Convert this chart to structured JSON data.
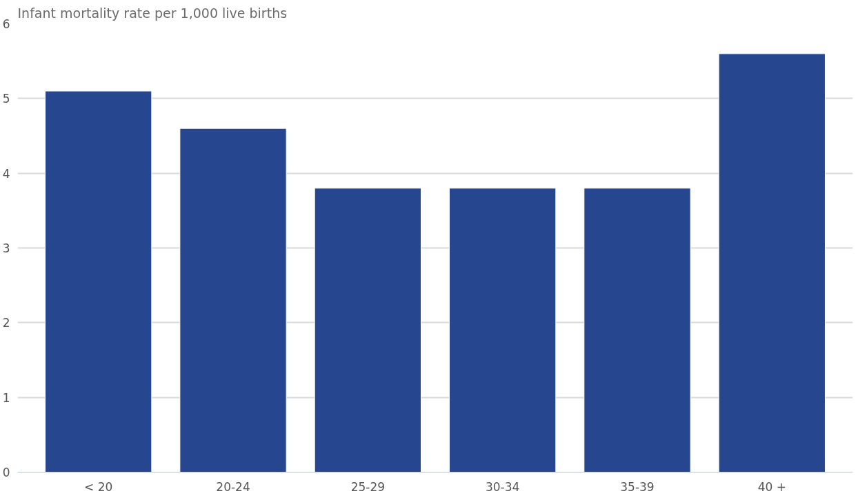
{
  "chart_data": {
    "type": "bar",
    "subtitle": "Infant mortality rate per 1,000 live births",
    "categories": [
      "< 20",
      "20-24",
      "25-29",
      "30-34",
      "35-39",
      "40 +"
    ],
    "values": [
      5.1,
      4.6,
      3.8,
      3.8,
      3.8,
      5.6
    ],
    "color": "#26468f",
    "ylim": [
      0,
      6
    ],
    "yticks": [
      0,
      1,
      2,
      3,
      4,
      5,
      6
    ],
    "grid": "y"
  }
}
